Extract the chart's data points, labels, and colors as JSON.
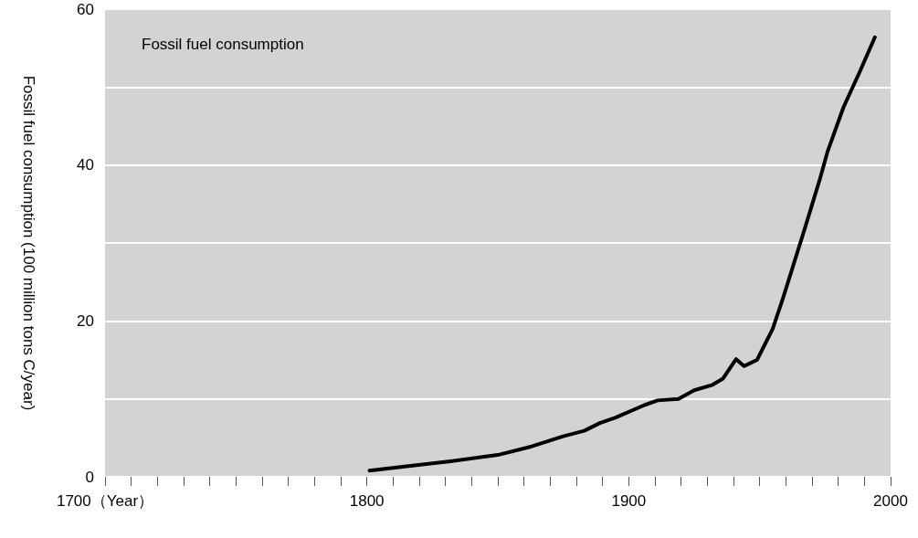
{
  "chart_data": {
    "type": "line",
    "title": "Fossil fuel consumption",
    "ylabel": "Fossil fuel consumption (100 million tons C/year)",
    "x": [
      1801,
      1819,
      1832,
      1850,
      1863,
      1875,
      1883,
      1889,
      1895,
      1906,
      1911,
      1919,
      1925,
      1932,
      1936,
      1941,
      1944,
      1949,
      1955,
      1959,
      1967,
      1973,
      1976,
      1982,
      1988,
      1994
    ],
    "series": [
      {
        "color": "#000000",
        "values": [
          0.8,
          1.5,
          2.0,
          2.8,
          3.9,
          5.2,
          5.9,
          6.9,
          7.6,
          9.2,
          9.8,
          10.0,
          11.1,
          11.8,
          12.6,
          15.1,
          14.2,
          15.0,
          19.0,
          23.0,
          31.6,
          38.2,
          41.8,
          47.4,
          51.8,
          56.4
        ]
      }
    ],
    "xlim": [
      1700,
      2000
    ],
    "xticks": [
      {
        "value": 1700,
        "label": "1700（Year）"
      },
      {
        "value": 1710,
        "label": null
      },
      {
        "value": 1720,
        "label": null
      },
      {
        "value": 1730,
        "label": null
      },
      {
        "value": 1740,
        "label": null
      },
      {
        "value": 1750,
        "label": null
      },
      {
        "value": 1760,
        "label": null
      },
      {
        "value": 1770,
        "label": null
      },
      {
        "value": 1780,
        "label": null
      },
      {
        "value": 1790,
        "label": null
      },
      1800,
      {
        "value": 1810,
        "label": null
      },
      {
        "value": 1820,
        "label": null
      },
      {
        "value": 1830,
        "label": null
      },
      {
        "value": 1840,
        "label": null
      },
      {
        "value": 1850,
        "label": null
      },
      {
        "value": 1860,
        "label": null
      },
      {
        "value": 1870,
        "label": null
      },
      {
        "value": 1880,
        "label": null
      },
      {
        "value": 1890,
        "label": null
      },
      1900,
      {
        "value": 1910,
        "label": null
      },
      {
        "value": 1920,
        "label": null
      },
      {
        "value": 1930,
        "label": null
      },
      {
        "value": 1940,
        "label": null
      },
      {
        "value": 1950,
        "label": null
      },
      {
        "value": 1960,
        "label": null
      },
      {
        "value": 1970,
        "label": null
      },
      {
        "value": 1980,
        "label": null
      },
      {
        "value": 1990,
        "label": null
      },
      2000
    ],
    "ylim": [
      0,
      60
    ],
    "yticks": [
      0,
      {
        "value": 10,
        "label": null
      },
      20,
      {
        "value": 30,
        "label": null
      },
      40,
      {
        "value": 50,
        "label": null
      },
      60
    ],
    "grid": "y",
    "marker": "none",
    "line_style": "solid"
  }
}
